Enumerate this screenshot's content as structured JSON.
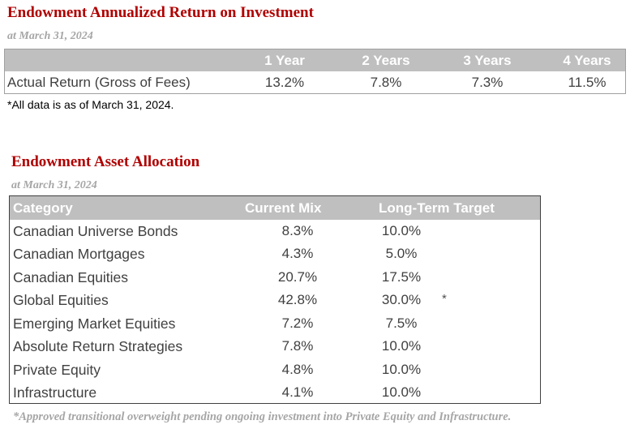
{
  "roi": {
    "title": "Endowment Annualized Return on Investment",
    "subtitle": "at March 31, 2024",
    "columns": [
      "1 Year",
      "2 Years",
      "3 Years",
      "4 Years"
    ],
    "row_label": "Actual Return (Gross of Fees)",
    "values": [
      "13.2%",
      "7.8%",
      "7.3%",
      "11.5%"
    ],
    "note": "*All data is as of March 31, 2024."
  },
  "allocation": {
    "title": "Endowment Asset Allocation",
    "subtitle": "at March 31, 2024",
    "headers": {
      "category": "Category",
      "current_mix": "Current Mix",
      "long_term_target": "Long-Term Target"
    },
    "rows": [
      {
        "category": "Canadian Universe Bonds",
        "current_mix": "8.3%",
        "target": "10.0%",
        "mark": ""
      },
      {
        "category": "Canadian Mortgages",
        "current_mix": "4.3%",
        "target": "5.0%",
        "mark": ""
      },
      {
        "category": "Canadian Equities",
        "current_mix": "20.7%",
        "target": "17.5%",
        "mark": ""
      },
      {
        "category": "Global Equities",
        "current_mix": "42.8%",
        "target": "30.0%",
        "mark": "*"
      },
      {
        "category": "Emerging Market Equities",
        "current_mix": "7.2%",
        "target": "7.5%",
        "mark": ""
      },
      {
        "category": "Absolute Return Strategies",
        "current_mix": "7.8%",
        "target": "10.0%",
        "mark": ""
      },
      {
        "category": "Private Equity",
        "current_mix": "4.8%",
        "target": "10.0%",
        "mark": ""
      },
      {
        "category": "Infrastructure",
        "current_mix": "4.1%",
        "target": "10.0%",
        "mark": ""
      }
    ],
    "footnote": "*Approved transitional overweight pending ongoing investment into Private Equity and Infrastructure."
  },
  "colors": {
    "title": "#b00000",
    "subtitle": "#a6a6a6",
    "header_fill": "#bfbfbf",
    "header_text": "#ffffff",
    "body_text": "#404040"
  }
}
